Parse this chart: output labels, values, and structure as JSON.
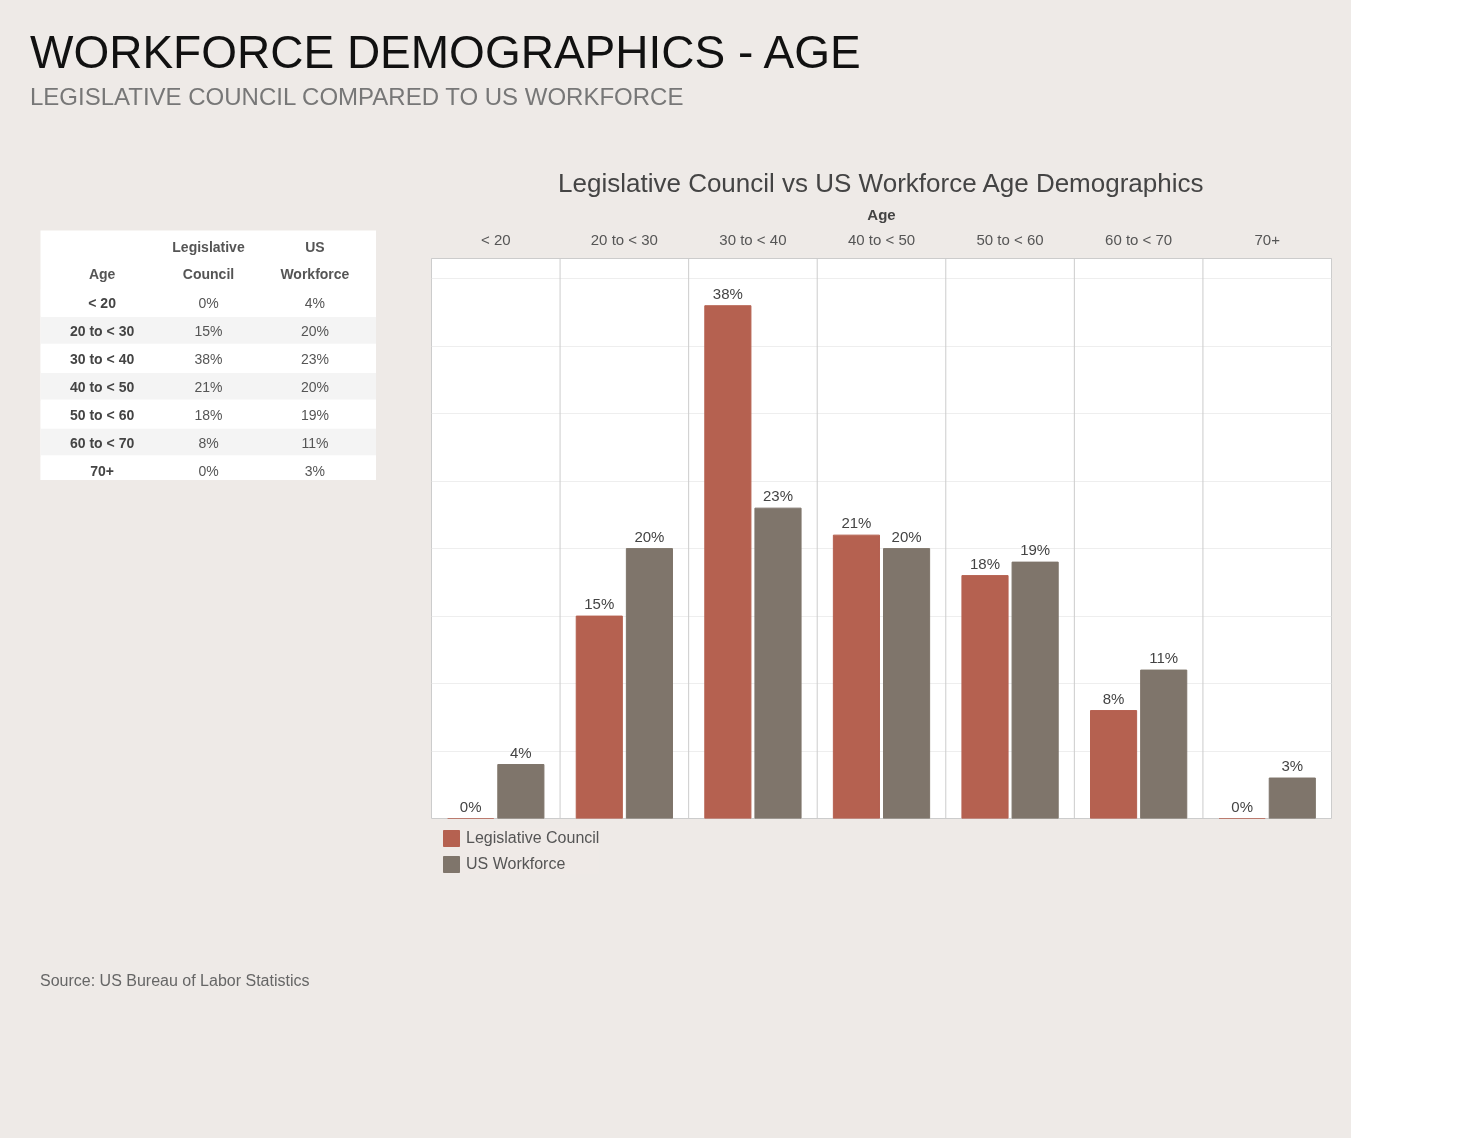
{
  "chart_data": {
    "type": "bar",
    "title": "WORKFORCE DEMOGRAPHICS - AGE",
    "subtitle": "LEGISLATIVE COUNCIL COMPARED TO US WORKFORCE",
    "annotations": [
      "Legislative Council vs US Workforce Age Demographics",
      "Source: US Bureau of Labor Statistics"
    ],
    "xlabel": "Age",
    "categories": [
      "< 20",
      "20 to < 30",
      "30 to < 40",
      "40 to < 50",
      "50 to < 60",
      "60 to < 70",
      "70+"
    ],
    "series": [
      {
        "name": "Legislative Council",
        "color": "#b56150",
        "values": [
          0,
          15,
          38,
          21,
          18,
          8,
          0
        ],
        "value_labels": [
          "0%",
          "15%",
          "38%",
          "21%",
          "18%",
          "8%",
          "0%"
        ]
      },
      {
        "name": "US Workforce",
        "color": "#7f756b",
        "values": [
          4,
          20,
          23,
          20,
          19,
          11,
          3
        ],
        "value_labels": [
          "4%",
          "20%",
          "23%",
          "20%",
          "19%",
          "11%",
          "3%"
        ]
      }
    ],
    "ylim": [
      0,
      41.5
    ],
    "yticks": [
      {
        "value": 0,
        "label": null
      },
      {
        "value": 5,
        "label": null
      },
      {
        "value": 10,
        "label": null
      },
      {
        "value": 15,
        "label": null
      },
      {
        "value": 20,
        "label": null
      },
      {
        "value": 25,
        "label": null
      },
      {
        "value": 30,
        "label": null
      },
      {
        "value": 35,
        "label": null
      },
      {
        "value": 40,
        "label": null
      }
    ],
    "tick_labels": "x",
    "grid": "y",
    "legend": "bottom left",
    "data_labels": true
  }
}
